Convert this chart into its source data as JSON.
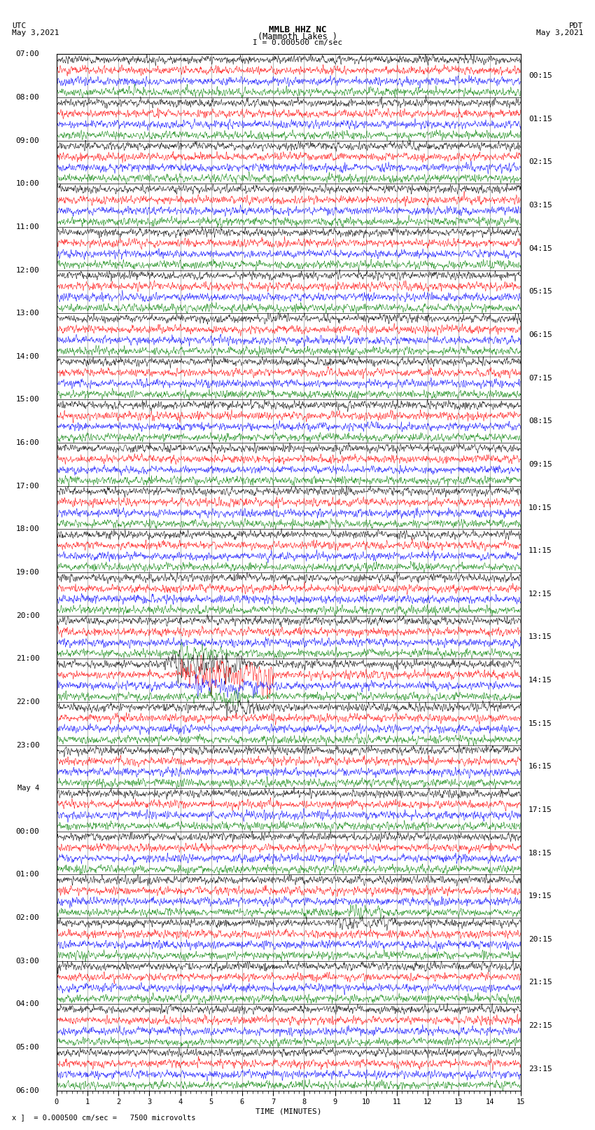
{
  "title_line1": "MMLB HHZ NC",
  "title_line2": "(Mammoth Lakes )",
  "scale_label": "= 0.000500 cm/sec",
  "left_label_top": "UTC",
  "left_label_date": "May 3,2021",
  "right_label_top": "PDT",
  "right_label_date": "May 3,2021",
  "bottom_label": "TIME (MINUTES)",
  "bottom_note": "= 0.000500 cm/sec =   7500 microvolts",
  "bottom_note_prefix": "x",
  "trace_colors": [
    "black",
    "red",
    "blue",
    "green"
  ],
  "num_rows": 24,
  "traces_per_row": 4,
  "fig_width": 8.5,
  "fig_height": 16.13,
  "bg_color": "white",
  "left_utc_labels": [
    "07:00",
    "08:00",
    "09:00",
    "10:00",
    "11:00",
    "12:00",
    "13:00",
    "14:00",
    "15:00",
    "16:00",
    "17:00",
    "18:00",
    "19:00",
    "20:00",
    "21:00",
    "22:00",
    "23:00",
    "May 4",
    "00:00",
    "01:00",
    "02:00",
    "03:00",
    "04:00",
    "05:00",
    "06:00"
  ],
  "right_pdt_labels": [
    "00:15",
    "01:15",
    "02:15",
    "03:15",
    "04:15",
    "05:15",
    "06:15",
    "07:15",
    "08:15",
    "09:15",
    "10:15",
    "11:15",
    "12:15",
    "13:15",
    "14:15",
    "15:15",
    "16:15",
    "17:15",
    "18:15",
    "19:15",
    "20:15",
    "21:15",
    "22:15",
    "23:15"
  ],
  "grid_color": "#999999",
  "font_color": "black",
  "font_size_labels": 8,
  "font_size_title": 9,
  "font_size_tick": 7.5,
  "minute_ticks": [
    0,
    1,
    2,
    3,
    4,
    5,
    6,
    7,
    8,
    9,
    10,
    11,
    12,
    13,
    14,
    15
  ],
  "xmin": 0,
  "xmax": 15,
  "eq_events": [
    {
      "trace_idx": 55,
      "xstart": 4.0,
      "xend": 5.5,
      "amp_mult": 3.5
    },
    {
      "trace_idx": 56,
      "xstart": 3.5,
      "xend": 6.0,
      "amp_mult": 5.0
    },
    {
      "trace_idx": 57,
      "xstart": 4.0,
      "xend": 7.0,
      "amp_mult": 6.0
    },
    {
      "trace_idx": 58,
      "xstart": 4.5,
      "xend": 6.5,
      "amp_mult": 4.0
    },
    {
      "trace_idx": 59,
      "xstart": 5.0,
      "xend": 6.0,
      "amp_mult": 3.0
    },
    {
      "trace_idx": 60,
      "xstart": 5.5,
      "xend": 6.5,
      "amp_mult": 2.5
    },
    {
      "trace_idx": 79,
      "xstart": 9.5,
      "xend": 10.5,
      "amp_mult": 2.5
    },
    {
      "trace_idx": 80,
      "xstart": 9.0,
      "xend": 11.0,
      "amp_mult": 2.0
    }
  ]
}
